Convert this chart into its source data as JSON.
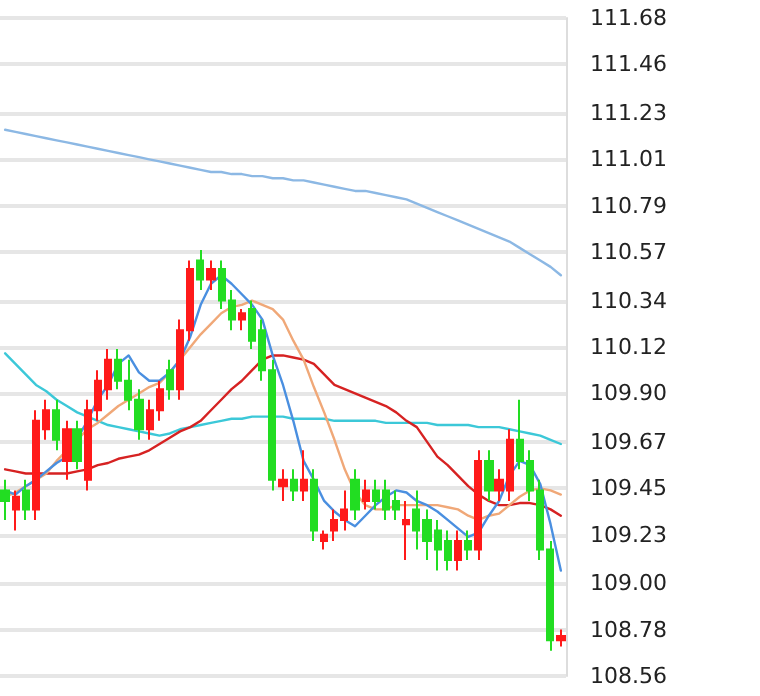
{
  "chart_data": {
    "type": "candlestick",
    "categories": [
      null,
      null,
      null,
      null,
      null,
      null,
      null,
      null,
      null,
      null,
      null,
      null,
      null,
      null,
      null,
      null,
      null,
      null,
      null,
      null,
      null,
      null,
      null,
      null,
      null,
      null,
      null,
      null,
      null,
      null,
      null,
      null,
      null,
      null,
      null,
      null,
      null,
      null,
      null,
      null,
      null,
      null,
      null,
      null,
      null,
      null,
      null,
      null,
      null,
      null,
      null,
      null,
      null,
      null,
      null
    ],
    "ohlc": [
      [
        109.44,
        109.49,
        109.3,
        109.39
      ],
      [
        109.35,
        109.44,
        109.25,
        109.41
      ],
      [
        109.44,
        109.49,
        109.3,
        109.35
      ],
      [
        109.35,
        109.82,
        109.3,
        109.77
      ],
      [
        109.73,
        109.87,
        109.68,
        109.82
      ],
      [
        109.82,
        109.87,
        109.63,
        109.68
      ],
      [
        109.58,
        109.77,
        109.49,
        109.73
      ],
      [
        109.73,
        109.77,
        109.54,
        109.58
      ],
      [
        109.49,
        109.87,
        109.44,
        109.82
      ],
      [
        109.82,
        110.01,
        109.77,
        109.96
      ],
      [
        109.92,
        110.11,
        109.87,
        110.06
      ],
      [
        110.06,
        110.11,
        109.92,
        109.96
      ],
      [
        109.96,
        110.06,
        109.82,
        109.87
      ],
      [
        109.87,
        109.92,
        109.68,
        109.73
      ],
      [
        109.73,
        109.87,
        109.68,
        109.82
      ],
      [
        109.82,
        109.96,
        109.77,
        109.92
      ],
      [
        110.01,
        110.06,
        109.87,
        109.92
      ],
      [
        109.92,
        110.25,
        109.87,
        110.2
      ],
      [
        110.2,
        110.53,
        110.15,
        110.49
      ],
      [
        110.53,
        110.58,
        110.39,
        110.44
      ],
      [
        110.44,
        110.53,
        110.39,
        110.49
      ],
      [
        110.49,
        110.53,
        110.3,
        110.34
      ],
      [
        110.34,
        110.39,
        110.2,
        110.25
      ],
      [
        110.25,
        110.3,
        110.2,
        110.28
      ],
      [
        110.3,
        110.34,
        110.11,
        110.15
      ],
      [
        110.2,
        110.25,
        109.96,
        110.01
      ],
      [
        110.01,
        110.06,
        109.44,
        109.49
      ],
      [
        109.46,
        109.54,
        109.39,
        109.49
      ],
      [
        109.49,
        109.54,
        109.39,
        109.44
      ],
      [
        109.44,
        109.63,
        109.39,
        109.49
      ],
      [
        109.49,
        109.54,
        109.2,
        109.25
      ],
      [
        109.2,
        109.25,
        109.16,
        109.23
      ],
      [
        109.25,
        109.35,
        109.2,
        109.3
      ],
      [
        109.3,
        109.44,
        109.25,
        109.35
      ],
      [
        109.49,
        109.54,
        109.3,
        109.35
      ],
      [
        109.39,
        109.49,
        109.35,
        109.44
      ],
      [
        109.44,
        109.49,
        109.35,
        109.39
      ],
      [
        109.44,
        109.49,
        109.3,
        109.35
      ],
      [
        109.39,
        109.44,
        109.3,
        109.35
      ],
      [
        109.28,
        109.39,
        109.11,
        109.3
      ],
      [
        109.35,
        109.44,
        109.16,
        109.25
      ],
      [
        109.3,
        109.35,
        109.11,
        109.2
      ],
      [
        109.25,
        109.3,
        109.06,
        109.16
      ],
      [
        109.2,
        109.25,
        109.06,
        109.11
      ],
      [
        109.11,
        109.25,
        109.06,
        109.2
      ],
      [
        109.2,
        109.25,
        109.11,
        109.16
      ],
      [
        109.16,
        109.63,
        109.11,
        109.58
      ],
      [
        109.58,
        109.63,
        109.39,
        109.44
      ],
      [
        109.44,
        109.54,
        109.39,
        109.49
      ],
      [
        109.44,
        109.73,
        109.39,
        109.68
      ],
      [
        109.68,
        109.87,
        109.54,
        109.58
      ],
      [
        109.58,
        109.63,
        109.39,
        109.44
      ],
      [
        109.44,
        109.49,
        109.11,
        109.16
      ],
      [
        109.16,
        109.2,
        108.68,
        108.73
      ],
      [
        108.73,
        108.78,
        108.7,
        108.75
      ]
    ],
    "colors": [
      "#22dd22",
      "#ff1a1a",
      "#22dd22",
      "#ff1a1a",
      "#ff1a1a",
      "#22dd22",
      "#ff1a1a",
      "#22dd22",
      "#ff1a1a",
      "#ff1a1a",
      "#ff1a1a",
      "#22dd22",
      "#22dd22",
      "#22dd22",
      "#ff1a1a",
      "#ff1a1a",
      "#22dd22",
      "#ff1a1a",
      "#ff1a1a",
      "#22dd22",
      "#ff1a1a",
      "#22dd22",
      "#22dd22",
      "#ff1a1a",
      "#22dd22",
      "#22dd22",
      "#22dd22",
      "#ff1a1a",
      "#22dd22",
      "#ff1a1a",
      "#22dd22",
      "#ff1a1a",
      "#ff1a1a",
      "#ff1a1a",
      "#22dd22",
      "#ff1a1a",
      "#22dd22",
      "#22dd22",
      "#22dd22",
      "#ff1a1a",
      "#22dd22",
      "#22dd22",
      "#22dd22",
      "#22dd22",
      "#ff1a1a",
      "#22dd22",
      "#ff1a1a",
      "#22dd22",
      "#ff1a1a",
      "#ff1a1a",
      "#22dd22",
      "#22dd22",
      "#22dd22",
      "#22dd22",
      "#ff1a1a"
    ],
    "series": [
      {
        "type": "line",
        "color": "#8cb8e4",
        "values": [
          111.15,
          111.14,
          111.13,
          111.12,
          111.11,
          111.1,
          111.09,
          111.08,
          111.07,
          111.06,
          111.05,
          111.04,
          111.03,
          111.02,
          111.01,
          111.0,
          110.99,
          110.98,
          110.97,
          110.96,
          110.95,
          110.95,
          110.94,
          110.94,
          110.93,
          110.93,
          110.92,
          110.92,
          110.91,
          110.91,
          110.9,
          110.89,
          110.88,
          110.87,
          110.86,
          110.86,
          110.85,
          110.84,
          110.83,
          110.82,
          110.8,
          110.78,
          110.76,
          110.74,
          110.72,
          110.7,
          110.68,
          110.66,
          110.64,
          110.62,
          110.59,
          110.56,
          110.53,
          110.5,
          110.46
        ]
      },
      {
        "type": "line",
        "color": "#3cc8d8",
        "values": [
          110.09,
          110.04,
          109.99,
          109.94,
          109.91,
          109.87,
          109.84,
          109.81,
          109.79,
          109.77,
          109.75,
          109.74,
          109.73,
          109.72,
          109.71,
          109.7,
          109.71,
          109.73,
          109.74,
          109.75,
          109.76,
          109.77,
          109.78,
          109.78,
          109.79,
          109.79,
          109.79,
          109.79,
          109.78,
          109.78,
          109.78,
          109.78,
          109.77,
          109.77,
          109.77,
          109.77,
          109.77,
          109.76,
          109.76,
          109.76,
          109.76,
          109.76,
          109.75,
          109.75,
          109.75,
          109.75,
          109.74,
          109.74,
          109.74,
          109.73,
          109.72,
          109.71,
          109.7,
          109.68,
          109.66
        ]
      },
      {
        "type": "line",
        "color": "#d62222",
        "values": [
          109.54,
          109.53,
          109.52,
          109.52,
          109.52,
          109.52,
          109.52,
          109.53,
          109.54,
          109.56,
          109.57,
          109.59,
          109.6,
          109.61,
          109.63,
          109.66,
          109.69,
          109.72,
          109.74,
          109.77,
          109.82,
          109.87,
          109.92,
          109.96,
          110.01,
          110.06,
          110.08,
          110.08,
          110.07,
          110.06,
          110.04,
          109.99,
          109.94,
          109.92,
          109.9,
          109.88,
          109.86,
          109.84,
          109.81,
          109.77,
          109.74,
          109.67,
          109.6,
          109.56,
          109.51,
          109.46,
          109.42,
          109.39,
          109.37,
          109.37,
          109.38,
          109.38,
          109.37,
          109.35,
          109.32
        ]
      },
      {
        "type": "line",
        "color": "#f0a878",
        "values": [
          109.41,
          109.43,
          109.46,
          109.49,
          109.52,
          109.58,
          109.63,
          109.68,
          109.73,
          109.76,
          109.8,
          109.84,
          109.87,
          109.9,
          109.93,
          109.95,
          110.0,
          110.06,
          110.12,
          110.18,
          110.23,
          110.28,
          110.31,
          110.32,
          110.34,
          110.32,
          110.3,
          110.25,
          110.15,
          110.06,
          109.93,
          109.81,
          109.68,
          109.54,
          109.43,
          109.37,
          109.35,
          109.35,
          109.37,
          109.37,
          109.37,
          109.37,
          109.37,
          109.36,
          109.35,
          109.32,
          109.3,
          109.32,
          109.33,
          109.37,
          109.41,
          109.44,
          109.45,
          109.44,
          109.42
        ]
      },
      {
        "type": "line",
        "color": "#4a8fe0",
        "values": [
          109.44,
          109.42,
          109.46,
          109.49,
          109.53,
          109.57,
          109.6,
          null,
          109.77,
          109.87,
          109.94,
          110.04,
          110.08,
          110.0,
          109.96,
          109.96,
          110.0,
          110.06,
          110.17,
          110.32,
          110.42,
          110.46,
          110.42,
          110.37,
          110.32,
          110.25,
          110.08,
          109.94,
          109.77,
          109.58,
          109.49,
          109.39,
          109.34,
          109.3,
          109.27,
          109.32,
          109.37,
          109.41,
          109.44,
          109.43,
          109.39,
          109.37,
          109.34,
          109.3,
          109.26,
          109.22,
          109.24,
          109.32,
          109.39,
          109.51,
          109.58,
          109.56,
          109.47,
          109.28,
          109.06
        ]
      }
    ],
    "ylim": [
      108.56,
      111.68
    ],
    "yticks": [
      111.68,
      111.46,
      111.23,
      111.01,
      110.79,
      110.57,
      110.34,
      110.12,
      {
        "value": 109.9,
        "label": "109.90"
      },
      109.67,
      109.45,
      109.23,
      {
        "value": 109,
        "label": "109.00"
      },
      108.78,
      108.56
    ],
    "grid": "y",
    "tick_labels": "y"
  }
}
